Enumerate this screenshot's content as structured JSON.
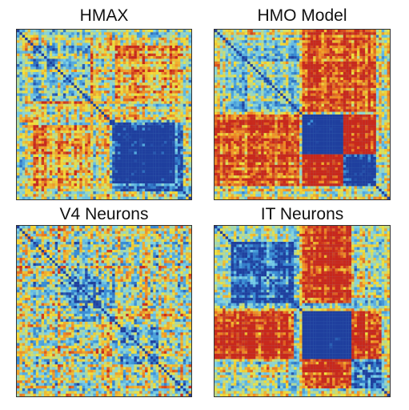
{
  "figure": {
    "panels": [
      {
        "title": "HMAX"
      },
      {
        "title": "HMO Model"
      },
      {
        "title": "V4 Neurons"
      },
      {
        "title": "IT Neurons"
      }
    ]
  },
  "chart_data": [
    {
      "type": "heatmap",
      "title": "HMAX",
      "n": 64,
      "colormap": [
        "#1f3f9e",
        "#3a8fd6",
        "#7fd3e8",
        "#f2e23a",
        "#f08a24",
        "#c8281c"
      ],
      "blocks": [
        [
          0.08,
          0.42,
          0.35
        ],
        [
          0.55,
          0.95,
          0.45
        ],
        [
          0.12,
          0.45,
          -0.35
        ],
        [
          0.52,
          0.9,
          0.3
        ]
      ],
      "cross_blocks": [
        [
          0.08,
          0.42,
          0.55,
          0.95,
          -0.3
        ]
      ],
      "noise": 0.55
    },
    {
      "type": "heatmap",
      "title": "HMO Model",
      "n": 64,
      "colormap": [
        "#1f3f9e",
        "#3a8fd6",
        "#7fd3e8",
        "#f2e23a",
        "#f08a24",
        "#c8281c"
      ],
      "blocks": [
        [
          0.05,
          0.48,
          0.2
        ],
        [
          0.5,
          0.72,
          0.75
        ],
        [
          0.72,
          0.92,
          0.6
        ]
      ],
      "cross_blocks": [
        [
          0.5,
          0.92,
          0.0,
          0.48,
          -0.45
        ],
        [
          0.5,
          0.72,
          0.72,
          0.92,
          -0.7
        ]
      ],
      "noise": 0.5
    },
    {
      "type": "heatmap",
      "title": "V4 Neurons",
      "n": 64,
      "colormap": [
        "#1f3f9e",
        "#3a8fd6",
        "#7fd3e8",
        "#f2e23a",
        "#f08a24",
        "#c8281c"
      ],
      "blocks": [
        [
          0.25,
          0.55,
          0.25
        ],
        [
          0.55,
          0.8,
          0.2
        ]
      ],
      "cross_blocks": [],
      "noise": 0.7
    },
    {
      "type": "heatmap",
      "title": "IT Neurons",
      "n": 64,
      "colormap": [
        "#1f3f9e",
        "#3a8fd6",
        "#7fd3e8",
        "#f2e23a",
        "#f08a24",
        "#c8281c"
      ],
      "blocks": [
        [
          0.08,
          0.45,
          0.45
        ],
        [
          0.5,
          0.78,
          0.85
        ],
        [
          0.78,
          0.95,
          0.4
        ]
      ],
      "cross_blocks": [
        [
          0.5,
          0.78,
          0.0,
          0.45,
          -0.6
        ],
        [
          0.5,
          0.78,
          0.78,
          0.95,
          -0.55
        ]
      ],
      "noise": 0.5
    }
  ]
}
